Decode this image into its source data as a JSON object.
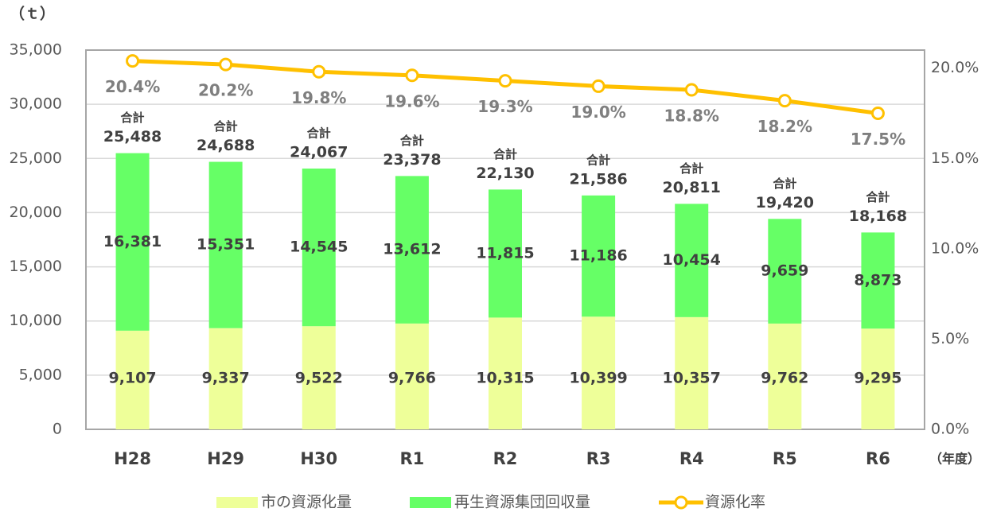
{
  "chart_data": {
    "type": "bar_line",
    "y_unit": "（ｔ）",
    "x_unit": "（年度）",
    "categories": [
      "H28",
      "H29",
      "H30",
      "R1",
      "R2",
      "R3",
      "R4",
      "R5",
      "R6"
    ],
    "series": [
      {
        "name": "市の資源化量",
        "color": "#eeff99",
        "values": [
          9107,
          9337,
          9522,
          9766,
          10315,
          10399,
          10357,
          9762,
          9295
        ],
        "value_labels": [
          "9,107",
          "9,337",
          "9,522",
          "9,766",
          "10,315",
          "10,399",
          "10,357",
          "9,762",
          "9,295"
        ]
      },
      {
        "name": "再生資源集団回収量",
        "color": "#66ff66",
        "values": [
          16381,
          15351,
          14545,
          13612,
          11815,
          11186,
          10454,
          9659,
          8873
        ],
        "value_labels": [
          "16,381",
          "15,351",
          "14,545",
          "13,612",
          "11,815",
          "11,186",
          "10,454",
          "9,659",
          "8,873"
        ]
      },
      {
        "name": "資源化率",
        "color": "#ffc000",
        "axis": "y2",
        "type": "line",
        "values": [
          20.4,
          20.2,
          19.8,
          19.6,
          19.3,
          19.0,
          18.8,
          18.2,
          17.5
        ],
        "value_labels": [
          "20.4%",
          "20.2%",
          "19.8%",
          "19.6%",
          "19.3%",
          "19.0%",
          "18.8%",
          "18.2%",
          "17.5%"
        ]
      }
    ],
    "total_prefix": "合計",
    "totals": [
      25488,
      24688,
      24067,
      23378,
      22130,
      21586,
      20811,
      19420,
      18168
    ],
    "total_labels": [
      "25,488",
      "24,688",
      "24,067",
      "23,378",
      "22,130",
      "21,586",
      "20,811",
      "19,420",
      "18,168"
    ],
    "ylim": [
      0,
      35000
    ],
    "yticks": [
      0,
      {
        "value": 5000,
        "label": "5,000"
      },
      {
        "value": 10000,
        "label": "10,000"
      },
      {
        "value": 15000,
        "label": "15,000"
      },
      {
        "value": 20000,
        "label": "20,000"
      },
      {
        "value": 25000,
        "label": "25,000"
      },
      {
        "value": 30000,
        "label": "30,000"
      },
      {
        "value": 35000,
        "label": "35,000"
      }
    ],
    "y2lim": [
      0,
      21
    ],
    "y2ticks": [
      {
        "value": 0,
        "label": "0.0%"
      },
      {
        "value": 5,
        "label": "5.0%"
      },
      {
        "value": 10,
        "label": "10.0%"
      },
      {
        "value": 15,
        "label": "15.0%"
      },
      {
        "value": 20,
        "label": "20.0%"
      }
    ],
    "grid": true,
    "legend": "bottom"
  }
}
